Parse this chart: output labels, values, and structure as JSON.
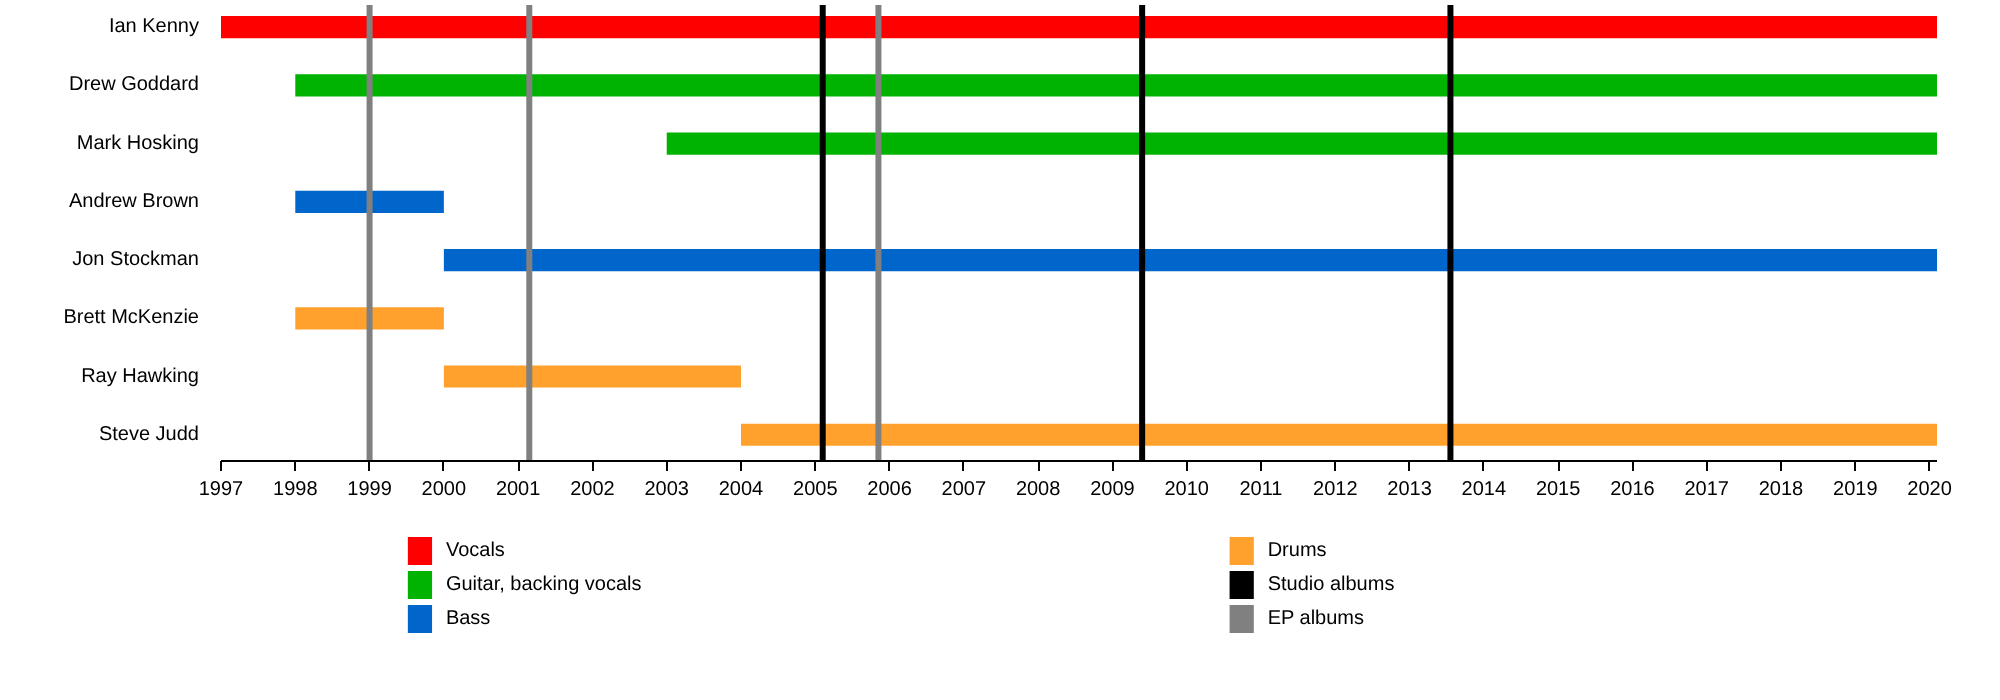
{
  "chart_data": {
    "type": "bar",
    "orientation": "horizontal",
    "categories": [
      "Ian Kenny",
      "Drew Goddard",
      "Mark Hosking",
      "Andrew Brown",
      "Jon Stockman",
      "Brett McKenzie",
      "Ray Hawking",
      "Steve Judd"
    ],
    "series": [
      {
        "name": "Vocals",
        "color": "#ff0000",
        "base": [
          1997,
          null,
          null,
          null,
          null,
          null,
          null,
          null
        ],
        "values": [
          23.1,
          null,
          null,
          null,
          null,
          null,
          null,
          null
        ]
      },
      {
        "name": "Guitar, backing vocals",
        "color": "#00b300",
        "base": [
          null,
          1998,
          2003,
          null,
          null,
          null,
          null,
          null
        ],
        "values": [
          null,
          22.1,
          17.1,
          null,
          null,
          null,
          null,
          null
        ]
      },
      {
        "name": "Bass",
        "color": "#0066cc",
        "base": [
          null,
          null,
          null,
          1998,
          2000,
          null,
          null,
          null
        ],
        "values": [
          null,
          null,
          null,
          2,
          20.1,
          null,
          null,
          null
        ]
      },
      {
        "name": "Drums",
        "color": "#ffa12c",
        "base": [
          null,
          null,
          null,
          null,
          null,
          1998,
          2000,
          2004
        ],
        "values": [
          null,
          null,
          null,
          null,
          null,
          2,
          4,
          16.1
        ]
      }
    ],
    "ref_lines": [
      {
        "axis": "x",
        "value": 2005.1,
        "label": "Studio albums",
        "color": "#000000"
      },
      {
        "axis": "x",
        "value": 2009.4,
        "label": null,
        "color": "#000000"
      },
      {
        "axis": "x",
        "value": 2013.55,
        "label": null,
        "color": "#000000"
      },
      {
        "axis": "x",
        "value": 1999.0,
        "label": "EP albums",
        "color": "#808080"
      },
      {
        "axis": "x",
        "value": 2001.15,
        "label": null,
        "color": "#808080"
      },
      {
        "axis": "x",
        "value": 2005.85,
        "label": null,
        "color": "#808080"
      }
    ],
    "xlim": [
      1997,
      2020.1
    ],
    "xticks": [
      1997,
      1998,
      1999,
      2000,
      2001,
      2002,
      2003,
      2004,
      2005,
      2006,
      2007,
      2008,
      2009,
      2010,
      2011,
      2012,
      2013,
      2014,
      2015,
      2016,
      2017,
      2018,
      2019,
      2020
    ],
    "grid": false,
    "legend": "bottom"
  }
}
